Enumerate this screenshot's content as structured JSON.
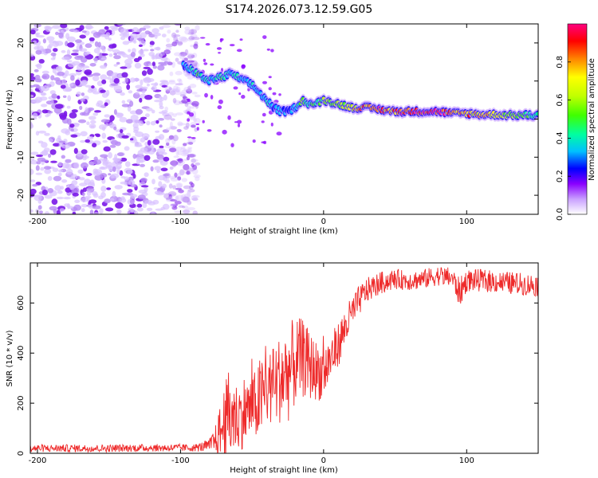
{
  "figure_title": "S174.2026.073.12.59.G05",
  "chart_data": [
    {
      "type": "heatmap",
      "title": "S174.2026.073.12.59.G05",
      "xlabel": "Height of straight line (km)",
      "ylabel": "Frequency (Hz)",
      "xlim": [
        -205,
        150
      ],
      "ylim": [
        -25,
        25
      ],
      "xticks": [
        -200,
        -100,
        0,
        100
      ],
      "yticks": [
        -20,
        -10,
        0,
        10,
        20
      ],
      "noise_region": {
        "x": [
          -205,
          -88
        ],
        "y": [
          -25,
          25
        ]
      },
      "ridge": {
        "x": [
          -98,
          -92,
          -85,
          -80,
          -75,
          -70,
          -65,
          -60,
          -55,
          -50,
          -45,
          -40,
          -35,
          -30,
          -25,
          -20,
          -15,
          -10,
          -5,
          0,
          10,
          20,
          30,
          40,
          50,
          60,
          70,
          80,
          90,
          100,
          110,
          120,
          130,
          140,
          150
        ],
        "y": [
          14,
          13,
          11,
          10,
          11,
          11,
          12,
          11,
          10,
          9,
          7,
          5,
          3,
          2,
          2,
          3,
          5,
          4,
          4,
          5,
          4,
          3,
          3,
          2.5,
          2,
          2,
          2,
          2,
          1.5,
          1.5,
          1.2,
          1.2,
          1,
          1,
          1
        ],
        "amplitude": [
          0.3,
          0.45,
          0.5,
          0.4,
          0.45,
          0.5,
          0.4,
          0.45,
          0.35,
          0.4,
          0.35,
          0.4,
          0.35,
          0.4,
          0.3,
          0.35,
          0.6,
          0.45,
          0.5,
          0.55,
          0.6,
          0.7,
          0.85,
          0.9,
          0.85,
          0.95,
          0.9,
          0.95,
          0.85,
          0.8,
          0.75,
          0.7,
          0.6,
          0.55,
          0.5
        ]
      },
      "colorbar": {
        "label": "Normalized spectral amplitude",
        "range": [
          0,
          1
        ],
        "ticks": [
          "0.0",
          "0.2",
          "0.4",
          "0.6",
          "0.8"
        ],
        "colors": [
          "#ffffff",
          "#c9a0ff",
          "#8a00ff",
          "#0000ff",
          "#00c0ff",
          "#00ffa0",
          "#40ff00",
          "#c0ff00",
          "#ffff00",
          "#ff8000",
          "#ff0000",
          "#ff0080"
        ]
      }
    },
    {
      "type": "line",
      "xlabel": "Height of straight line (km)",
      "ylabel": "SNR (10 * v/v)",
      "xlim": [
        -205,
        150
      ],
      "ylim": [
        0,
        760
      ],
      "xticks": [
        -200,
        -100,
        0,
        100
      ],
      "yticks": [
        0,
        200,
        400,
        600
      ],
      "color": "#ee2a2a",
      "series": [
        {
          "name": "SNR",
          "x": [
            -205,
            -180,
            -150,
            -120,
            -100,
            -90,
            -80,
            -75,
            -70,
            -65,
            -60,
            -55,
            -50,
            -45,
            -40,
            -35,
            -30,
            -25,
            -20,
            -15,
            -10,
            -5,
            0,
            5,
            10,
            15,
            20,
            25,
            30,
            40,
            50,
            60,
            70,
            80,
            90,
            95,
            100,
            110,
            120,
            130,
            140,
            150
          ],
          "y": [
            20,
            20,
            20,
            22,
            22,
            22,
            30,
            60,
            110,
            160,
            140,
            170,
            180,
            210,
            250,
            270,
            300,
            320,
            360,
            380,
            350,
            330,
            320,
            380,
            430,
            500,
            560,
            610,
            650,
            680,
            695,
            690,
            695,
            710,
            700,
            640,
            690,
            690,
            685,
            680,
            675,
            670
          ],
          "noise_amplitude": [
            15,
            15,
            15,
            15,
            15,
            15,
            25,
            60,
            150,
            200,
            130,
            150,
            120,
            170,
            150,
            160,
            180,
            200,
            180,
            160,
            140,
            120,
            110,
            100,
            90,
            80,
            70,
            60,
            50,
            45,
            40,
            40,
            40,
            40,
            40,
            60,
            45,
            45,
            45,
            45,
            45,
            45
          ]
        }
      ]
    }
  ]
}
